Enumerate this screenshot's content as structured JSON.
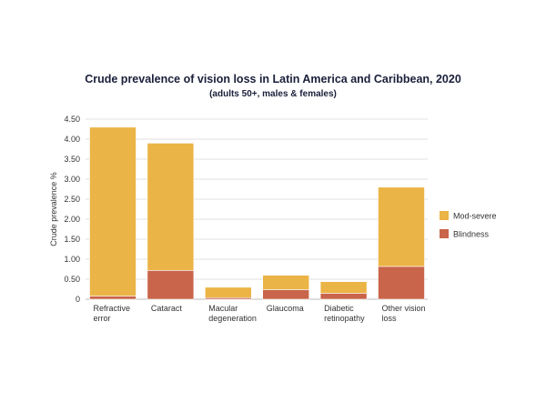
{
  "chart_data": {
    "type": "bar",
    "stacked": true,
    "title": "Crude prevalence of vision loss in Latin America and Caribbean, 2020",
    "subtitle": "(adults 50+, males & females)",
    "ylabel": "Crude prevalence %",
    "xlabel": "",
    "ylim": [
      0,
      4.5
    ],
    "yticks": [
      "0",
      "0.50",
      "1.00",
      "1.50",
      "2.00",
      "2.50",
      "3.00",
      "3.50",
      "4.00",
      "4.50"
    ],
    "ytick_values": [
      0,
      0.5,
      1.0,
      1.5,
      2.0,
      2.5,
      3.0,
      3.5,
      4.0,
      4.5
    ],
    "grid": true,
    "legend_position": "right",
    "categories": [
      [
        "Refractive",
        "error"
      ],
      [
        "Cataract"
      ],
      [
        "Macular",
        "degeneration"
      ],
      [
        "Glaucoma"
      ],
      [
        "Diabetic",
        "retinopathy"
      ],
      [
        "Other vision",
        "loss"
      ]
    ],
    "series": [
      {
        "name": "Blindness",
        "color": "#c9654a",
        "values": [
          0.08,
          0.72,
          0.04,
          0.24,
          0.15,
          0.82
        ]
      },
      {
        "name": "Mod-severe",
        "color": "#ebb446",
        "values": [
          4.22,
          3.18,
          0.26,
          0.36,
          0.29,
          1.98
        ]
      }
    ],
    "legend_order": [
      "Mod-severe",
      "Blindness"
    ]
  }
}
